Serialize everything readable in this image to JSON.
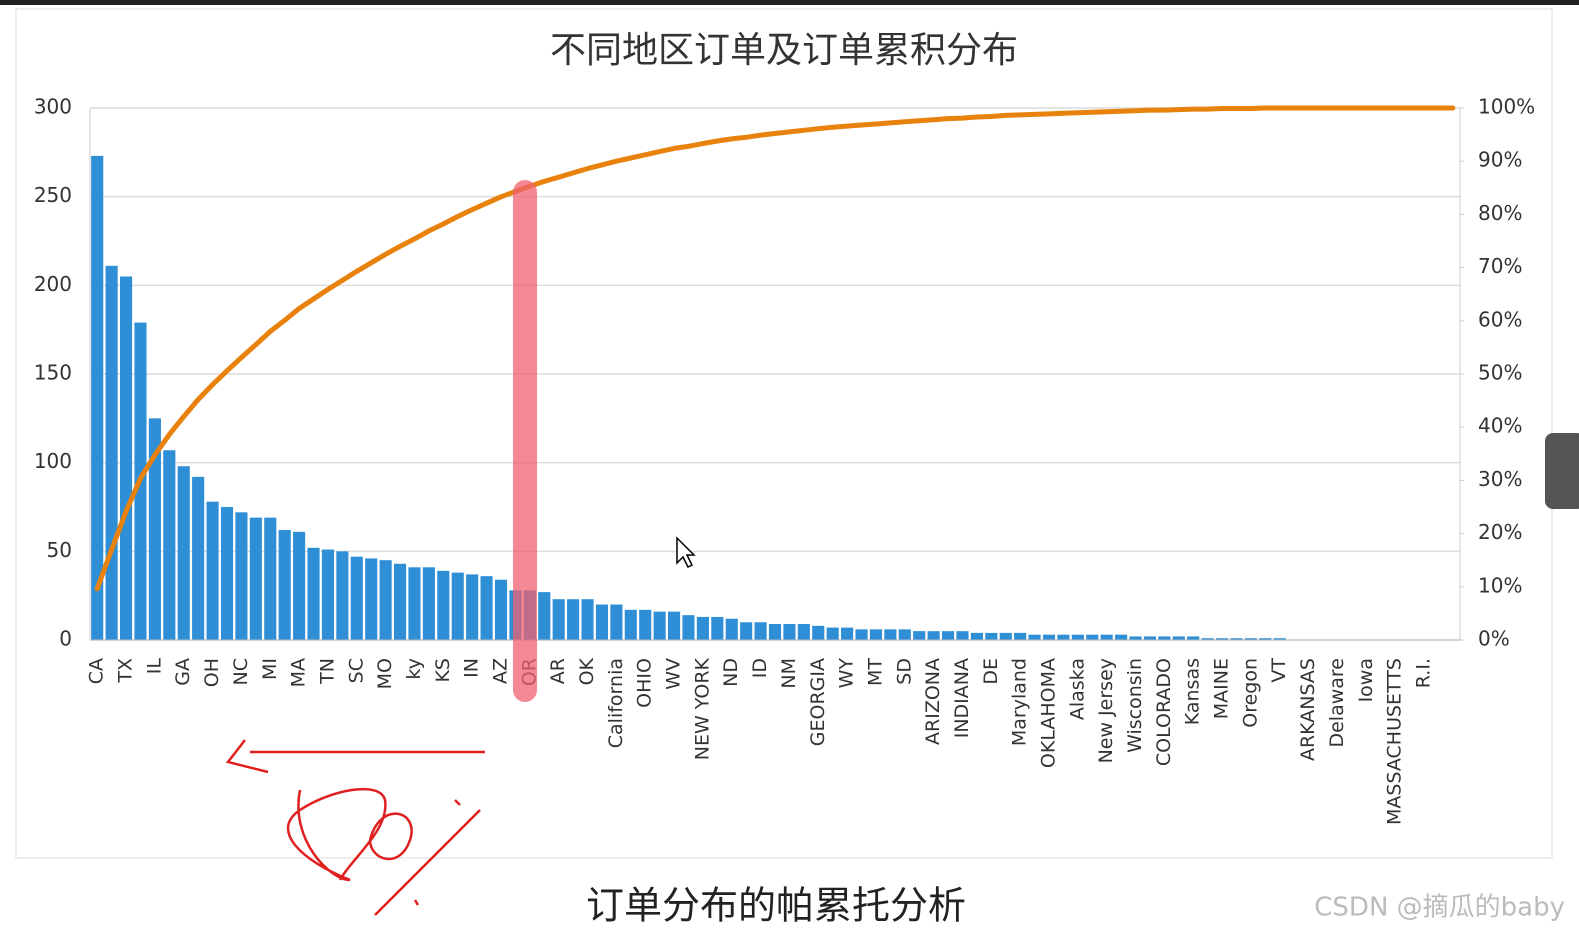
{
  "chart_data": {
    "type": "combo",
    "title": "不同地区订单及订单累积分布",
    "caption": "订单分布的帕累托分析",
    "watermark": "CSDN @摘瓜的baby",
    "categories": [
      "CA",
      null,
      "TX",
      null,
      "IL",
      null,
      "GA",
      null,
      "OH",
      null,
      "NC",
      null,
      "MI",
      null,
      "MA",
      null,
      "TN",
      null,
      "SC",
      null,
      "MO",
      null,
      "ky",
      null,
      "KS",
      null,
      "IN",
      null,
      "AZ",
      null,
      "OR",
      null,
      "AR",
      null,
      "OK",
      null,
      "California",
      null,
      "OHIO",
      null,
      "WV",
      null,
      "NEW YORK",
      null,
      "ND",
      null,
      "ID",
      null,
      "NM",
      null,
      "GEORGIA",
      null,
      "WY",
      null,
      "MT",
      null,
      "SD",
      null,
      "ARIZONA",
      null,
      "INDIANA",
      null,
      "DE",
      null,
      "Maryland",
      null,
      "OKLAHOMA",
      null,
      "Alaska",
      null,
      "New Jersey",
      null,
      "Wisconsin",
      null,
      "COLORADO",
      null,
      "Kansas",
      null,
      "MAINE",
      null,
      "Oregon",
      null,
      "VT",
      null,
      "ARKANSAS",
      null,
      "Delaware",
      null,
      "Iowa",
      null,
      "MASSACHUSETTS",
      null,
      "R.I.",
      null,
      null
    ],
    "series": [
      {
        "type": "bar",
        "color": "#2e8fd6",
        "values": [
          273,
          211,
          205,
          179,
          125,
          107,
          98,
          92,
          78,
          75,
          72,
          69,
          69,
          62,
          61,
          52,
          51,
          50,
          47,
          46,
          45,
          43,
          41,
          41,
          39,
          38,
          37,
          36,
          34,
          28,
          28,
          27,
          23,
          23,
          23,
          20,
          20,
          17,
          17,
          16,
          16,
          14,
          13,
          13,
          12,
          10,
          10,
          9,
          9,
          9,
          8,
          7,
          7,
          6,
          6,
          6,
          6,
          5,
          5,
          5,
          5,
          4,
          4,
          4,
          4,
          3,
          3,
          3,
          3,
          3,
          3,
          3,
          2,
          2,
          2,
          2,
          2,
          1,
          1,
          1,
          1,
          1,
          1,
          0,
          0,
          0,
          0,
          0,
          0,
          0,
          0,
          0,
          0,
          0,
          0
        ]
      },
      {
        "type": "line",
        "axis": "y2",
        "color": "#e8820c",
        "values": [
          9.6,
          17.0,
          24.2,
          30.4,
          34.8,
          38.6,
          42.0,
          45.2,
          48.0,
          50.6,
          53.1,
          55.5,
          58.0,
          60.1,
          62.3,
          64.1,
          65.9,
          67.6,
          69.3,
          70.9,
          72.5,
          74.0,
          75.4,
          76.9,
          78.2,
          79.6,
          80.9,
          82.1,
          83.3,
          84.3,
          85.3,
          86.2,
          87.0,
          87.8,
          88.6,
          89.3,
          90.0,
          90.6,
          91.2,
          91.8,
          92.4,
          92.8,
          93.3,
          93.8,
          94.2,
          94.5,
          94.9,
          95.2,
          95.5,
          95.8,
          96.1,
          96.4,
          96.6,
          96.8,
          97.0,
          97.2,
          97.4,
          97.6,
          97.8,
          98.0,
          98.1,
          98.3,
          98.4,
          98.6,
          98.7,
          98.8,
          98.9,
          99.0,
          99.1,
          99.2,
          99.3,
          99.4,
          99.5,
          99.6,
          99.6,
          99.7,
          99.8,
          99.8,
          99.9,
          99.9,
          99.9,
          100,
          100,
          100,
          100,
          100,
          100,
          100,
          100,
          100,
          100,
          100,
          100,
          100,
          100
        ]
      }
    ],
    "ylim": [
      0,
      300
    ],
    "yticks": [
      0,
      50,
      100,
      150,
      200,
      250,
      300
    ],
    "y2lim": [
      0,
      100
    ],
    "y2ticks": [
      {
        "value": 0,
        "label": "0%"
      },
      {
        "value": 10,
        "label": "10%"
      },
      {
        "value": 20,
        "label": "20%"
      },
      {
        "value": 30,
        "label": "30%"
      },
      {
        "value": 40,
        "label": "40%"
      },
      {
        "value": 50,
        "label": "50%"
      },
      {
        "value": 60,
        "label": "60%"
      },
      {
        "value": 70,
        "label": "70%"
      },
      {
        "value": 80,
        "label": "80%"
      },
      {
        "value": 90,
        "label": "90%"
      },
      {
        "value": 100,
        "label": "100%"
      }
    ],
    "grid": true
  }
}
